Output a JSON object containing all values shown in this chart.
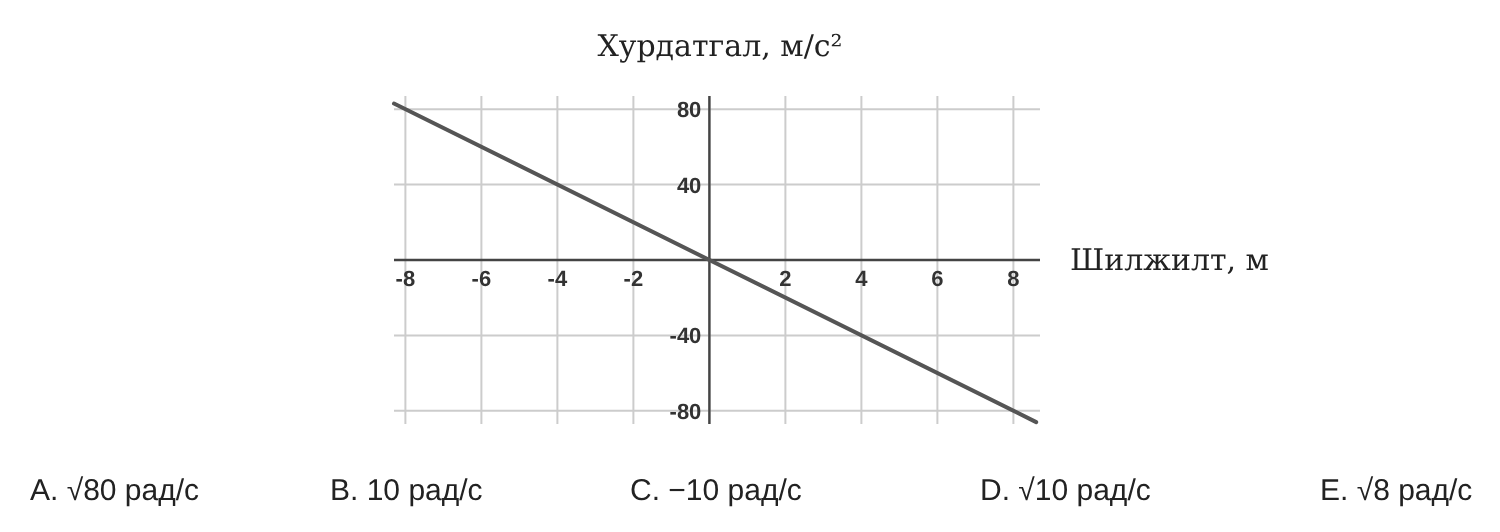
{
  "chart_data": {
    "type": "line",
    "xlabel": "Шилжилт, м",
    "ylabel": "Хурдатгал, м/с²",
    "x": [
      -8.3,
      8.6
    ],
    "series": [
      {
        "color": "#555555",
        "values": [
          83,
          -86
        ]
      }
    ],
    "xlim": [
      -8.3,
      8.7
    ],
    "ylim": [
      -87,
      87
    ],
    "xticks": [
      -8,
      -6,
      -4,
      -2,
      {
        "value": 0,
        "label": null
      },
      2,
      4,
      6,
      8
    ],
    "yticks": [
      -80,
      -40,
      {
        "value": 0,
        "label": null
      },
      40,
      80
    ],
    "grid": true,
    "line_style": "solid",
    "annotations": [
      "A. √80 рад/с",
      "B. 10 рад/с",
      "C. −10 рад/с",
      "D. √10 рад/с",
      "E. √8 рад/с"
    ]
  }
}
